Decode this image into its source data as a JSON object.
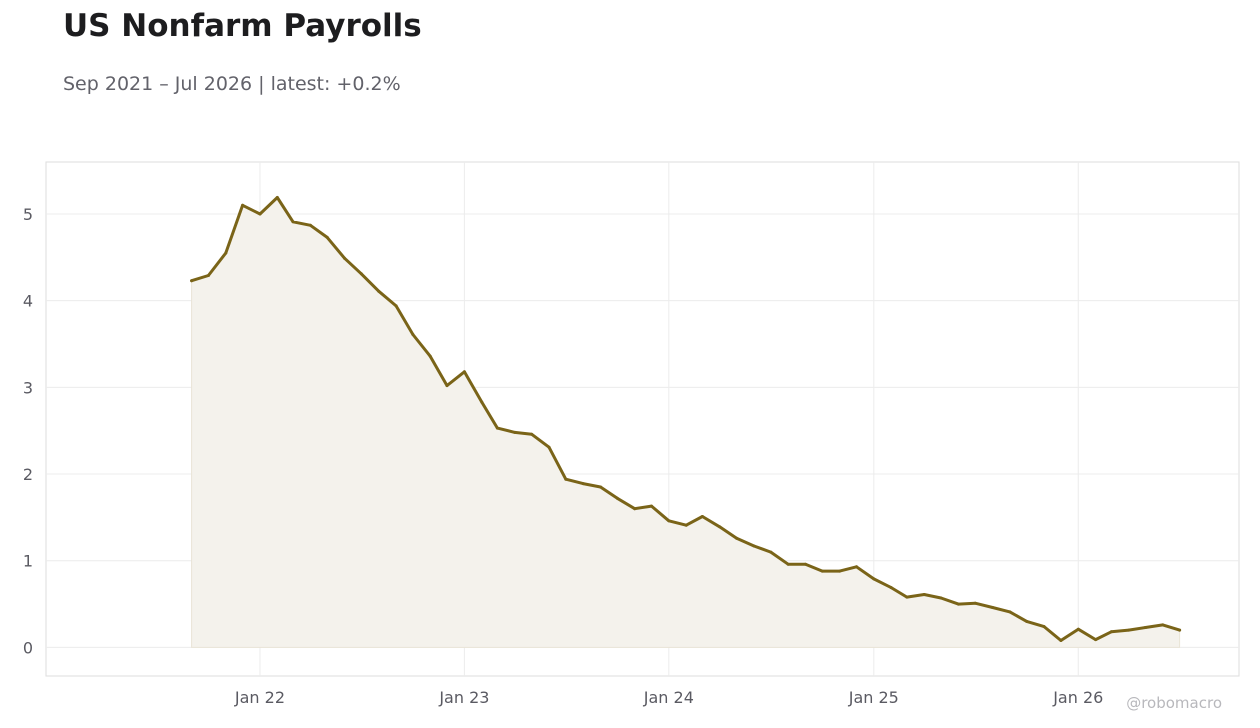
{
  "title": "US Nonfarm Payrolls",
  "subtitle": "Sep 2021 – Jul 2026 | latest: +0.2%",
  "watermark": "@robomacro",
  "colors": {
    "line": "#7a6418",
    "fill": "#f4f2ec",
    "grid": "#ececec",
    "frame": "#dddddd",
    "tick_text": "#5a5a62"
  },
  "chart_data": {
    "type": "area",
    "x": [
      "2021-09",
      "2021-10",
      "2021-11",
      "2021-12",
      "2022-01",
      "2022-02",
      "2022-03",
      "2022-04",
      "2022-05",
      "2022-06",
      "2022-07",
      "2022-08",
      "2022-09",
      "2022-10",
      "2022-11",
      "2022-12",
      "2023-01",
      "2023-02",
      "2023-03",
      "2023-04",
      "2023-05",
      "2023-06",
      "2023-07",
      "2023-08",
      "2023-09",
      "2023-10",
      "2023-11",
      "2023-12",
      "2024-01",
      "2024-02",
      "2024-03",
      "2024-04",
      "2024-05",
      "2024-06",
      "2024-07",
      "2024-08",
      "2024-09",
      "2024-10",
      "2024-11",
      "2024-12",
      "2025-01",
      "2025-02",
      "2025-03",
      "2025-04",
      "2025-05",
      "2025-06",
      "2025-07",
      "2025-08",
      "2025-09",
      "2025-10",
      "2025-11",
      "2025-12",
      "2026-01",
      "2026-02",
      "2026-03",
      "2026-04",
      "2026-05",
      "2026-06",
      "2026-07"
    ],
    "values": [
      4.23,
      4.29,
      4.55,
      5.1,
      5.0,
      5.19,
      4.91,
      4.87,
      4.73,
      4.49,
      4.31,
      4.11,
      3.94,
      3.61,
      3.36,
      3.02,
      3.18,
      2.83,
      2.53,
      2.48,
      2.46,
      2.31,
      1.94,
      1.89,
      1.85,
      1.72,
      1.6,
      1.63,
      1.46,
      1.41,
      1.51,
      1.39,
      1.26,
      1.17,
      1.1,
      0.96,
      0.96,
      0.88,
      0.88,
      0.93,
      0.79,
      0.69,
      0.58,
      0.61,
      0.57,
      0.5,
      0.51,
      0.46,
      0.41,
      0.3,
      0.24,
      0.08,
      0.21,
      0.09,
      0.18,
      0.2,
      0.23,
      0.26,
      0.2
    ],
    "ylim": [
      -0.33,
      5.6
    ],
    "yticks": [
      0,
      1,
      2,
      3,
      4,
      5
    ],
    "xticks": [
      {
        "date": "2022-01",
        "label": "Jan 22"
      },
      {
        "date": "2023-01",
        "label": "Jan 23"
      },
      {
        "date": "2024-01",
        "label": "Jan 24"
      },
      {
        "date": "2025-01",
        "label": "Jan 25"
      },
      {
        "date": "2026-01",
        "label": "Jan 26"
      }
    ],
    "xlim": [
      "2020-12-15",
      "2026-10-15"
    ],
    "grid": true,
    "xlabel": "",
    "ylabel": ""
  }
}
